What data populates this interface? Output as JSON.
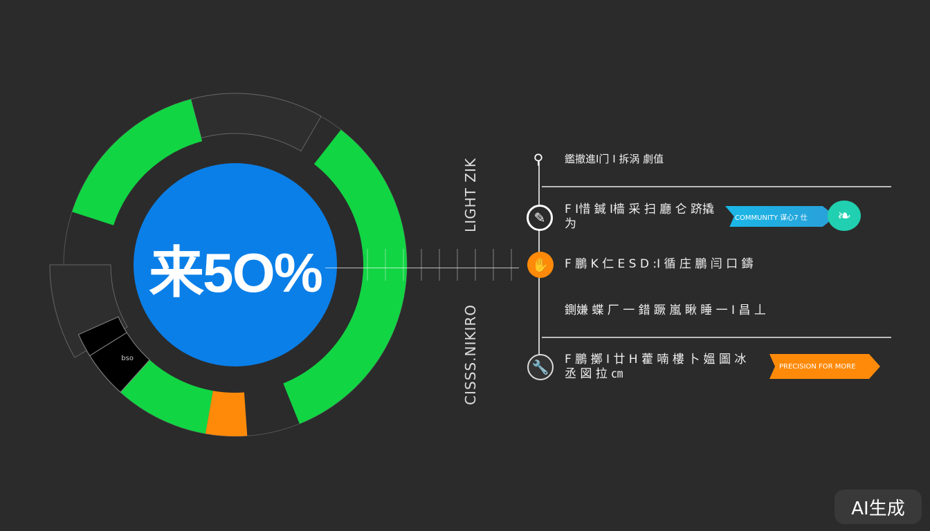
{
  "colors": {
    "background": "#2b2b2b",
    "green": "#12d544",
    "blue": "#0a7fe8",
    "orange": "#ff8a0a",
    "cyan": "#1ab8e8",
    "teal": "#21d0b0"
  },
  "donut": {
    "center_label": "来5O%",
    "segment_labels": [
      "bso"
    ]
  },
  "vertical_labels": [
    "LIGHT ZIK",
    "CISSS.NIKIRO"
  ],
  "timeline": {
    "items": [
      {
        "icon": "magnifier-icon",
        "text": "鑑撤進I门 I 拆涡 劇值",
        "badge": ""
      },
      {
        "icon": "pencil-icon",
        "text": "F I惜 鍼 I樯 采  扫 廳 仑 跻撬  为",
        "badge": "COMMUNITY 谋心7 仕"
      },
      {
        "icon": "hand-icon",
        "text": "F 鵬 K 仁 E S  D :I 循 庄 鵬 闫 口  鑄",
        "badge": ""
      },
      {
        "icon": "",
        "text": "鍘嫌 蝶 厂 ⼀ 錯 蹶 嵐 瞅 睡 一 I 昌  丄",
        "badge": ""
      },
      {
        "icon": "wrench-icon",
        "text": "F 鵬 擲 I 廿 H 藿 喃 樓 卜 媼 圖 冰 丞 図 拉 ㎝",
        "badge": "PRECISION FOR MORE"
      }
    ]
  },
  "watermark": "AI生成"
}
